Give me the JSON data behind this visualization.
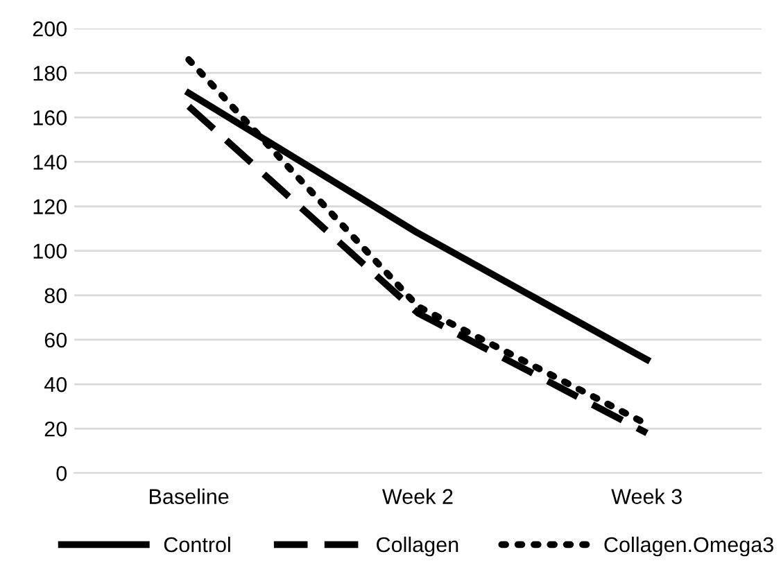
{
  "chart_data": {
    "type": "line",
    "categories": [
      "Baseline",
      "Week 2",
      "Week 3"
    ],
    "series": [
      {
        "name": "Control",
        "color": "#000000",
        "line_style": "solid",
        "values": [
          171,
          108,
          51
        ]
      },
      {
        "name": "Collagen",
        "color": "#000000",
        "line_style": "dashed",
        "values": [
          165,
          72,
          18
        ]
      },
      {
        "name": "Collagen.Omega3",
        "color": "#000000",
        "line_style": "dotted",
        "values": [
          186,
          75,
          22
        ]
      }
    ],
    "ylim": [
      0,
      200
    ],
    "yticks": [
      0,
      20,
      40,
      60,
      80,
      100,
      120,
      140,
      160,
      180,
      200
    ],
    "grid": "y",
    "legend": "bottom",
    "marker": "none"
  }
}
